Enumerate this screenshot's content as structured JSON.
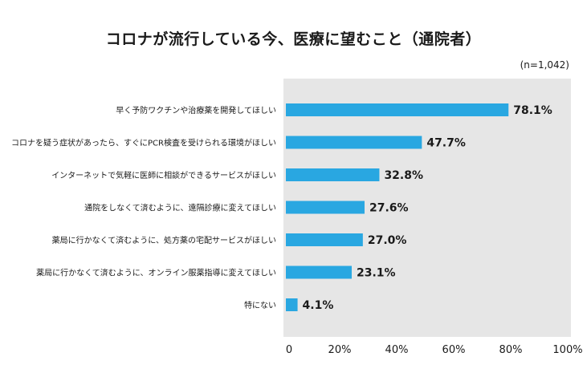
{
  "chart_data": {
    "type": "bar",
    "orientation": "horizontal",
    "title": "コロナが流行している今、医療に望むこと（通院者）",
    "note": "(n=1,042)",
    "categories": [
      "早く予防ワクチンや治療薬を開発してほしい",
      "コロナを疑う症状があったら、すぐにPCR検査を受けられる環境がほしい",
      "インターネットで気軽に医師に相談ができるサービスがほしい",
      "通院をしなくて済むように、遠隔診療に変えてほしい",
      "薬局に行かなくて済むように、処方薬の宅配サービスがほしい",
      "薬局に行かなくて済むように、オンライン服薬指導に変えてほしい",
      "特にない"
    ],
    "values": [
      78.1,
      47.7,
      32.8,
      27.6,
      27.0,
      23.1,
      4.1
    ],
    "value_labels": [
      "78.1%",
      "47.7%",
      "32.8%",
      "27.6%",
      "27.0%",
      "23.1%",
      "4.1%"
    ],
    "xlim": [
      0,
      100
    ],
    "x_ticks": [
      "0",
      "20%",
      "40%",
      "60%",
      "80%",
      "100%"
    ],
    "grid": false,
    "colors": {
      "bar": "#29a7e1",
      "plot_background": "#e6e6e6"
    }
  }
}
